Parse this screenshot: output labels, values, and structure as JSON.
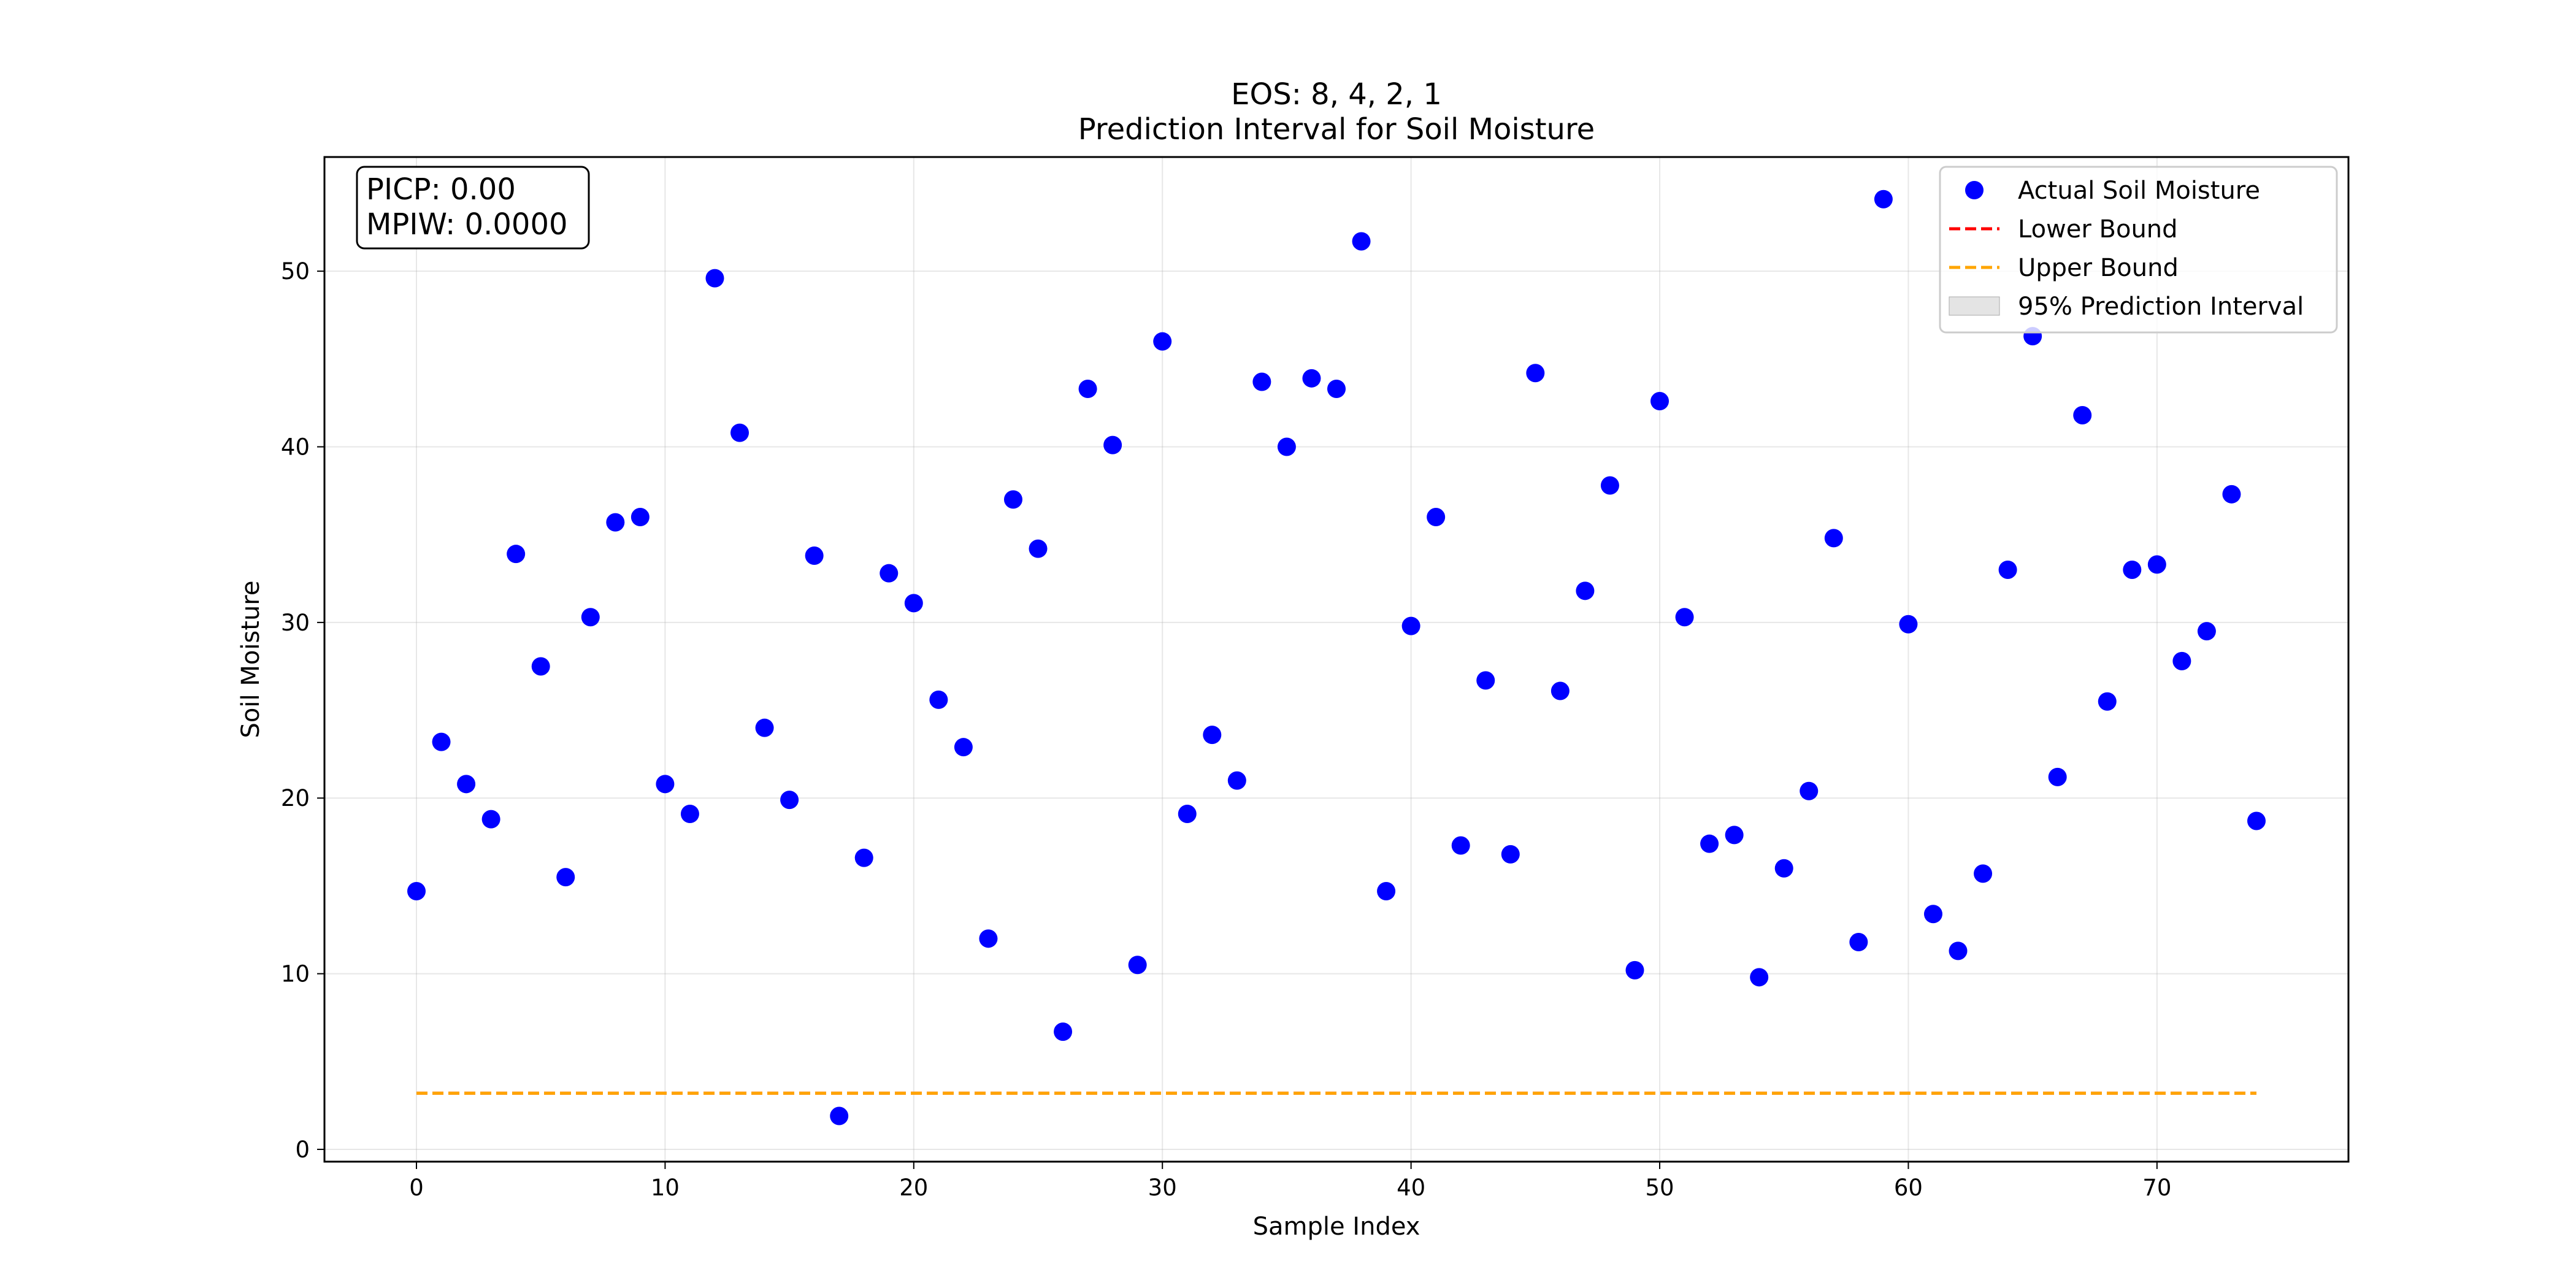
{
  "chart_data": {
    "type": "scatter",
    "title_line1": "EOS: 8, 4, 2, 1",
    "title_line2": "Prediction Interval for Soil Moisture",
    "xlabel": "Sample Index",
    "ylabel": "Soil Moisture",
    "xlim": [
      -3.7,
      77.7
    ],
    "ylim": [
      -0.7,
      56.5
    ],
    "xticks": [
      0,
      10,
      20,
      30,
      40,
      50,
      60,
      70
    ],
    "yticks": [
      0,
      10,
      20,
      30,
      40,
      50
    ],
    "grid": true,
    "legend_position": "top-right",
    "stats": {
      "picp": "PICP: 0.00",
      "mpiw": "MPIW: 0.0000"
    },
    "colors": {
      "actual": "#0000ff",
      "lower": "#ff0000",
      "upper": "#ffa500",
      "interval": "#d9d9d9"
    },
    "legend": [
      {
        "label": "Actual Soil Moisture",
        "kind": "marker",
        "color": "#0000ff"
      },
      {
        "label": "Lower Bound",
        "kind": "dashed",
        "color": "#ff0000"
      },
      {
        "label": "Upper Bound",
        "kind": "dashed",
        "color": "#ffa500"
      },
      {
        "label": "95% Prediction Interval",
        "kind": "patch",
        "color": "#d9d9d9"
      }
    ],
    "series": [
      {
        "name": "Actual Soil Moisture",
        "x": [
          0,
          1,
          2,
          3,
          4,
          5,
          6,
          7,
          8,
          9,
          10,
          11,
          12,
          13,
          14,
          15,
          16,
          17,
          18,
          19,
          20,
          21,
          22,
          23,
          24,
          25,
          26,
          27,
          28,
          29,
          30,
          31,
          32,
          33,
          34,
          35,
          36,
          37,
          38,
          39,
          40,
          41,
          42,
          43,
          44,
          45,
          46,
          47,
          48,
          49,
          50,
          51,
          52,
          53,
          54,
          55,
          56,
          57,
          58,
          59,
          60,
          61,
          62,
          63,
          64,
          65,
          66,
          67,
          68,
          69,
          70,
          71,
          72,
          73,
          74
        ],
        "y": [
          14.7,
          23.2,
          20.8,
          18.8,
          33.9,
          27.5,
          15.5,
          30.3,
          35.7,
          36.0,
          20.8,
          19.1,
          49.6,
          40.8,
          24.0,
          19.9,
          33.8,
          1.9,
          16.6,
          32.8,
          31.1,
          25.6,
          22.9,
          12.0,
          37.0,
          34.2,
          6.7,
          43.3,
          40.1,
          10.5,
          46.0,
          19.1,
          23.6,
          21.0,
          43.7,
          40.0,
          43.9,
          43.3,
          51.7,
          14.7,
          29.8,
          36.0,
          17.3,
          26.7,
          16.8,
          44.2,
          26.1,
          31.8,
          37.8,
          10.2,
          42.6,
          30.3,
          17.4,
          17.9,
          9.8,
          16.0,
          20.4,
          34.8,
          11.8,
          54.1,
          29.9,
          13.4,
          11.3,
          15.7,
          33.0,
          46.3,
          21.2,
          41.8,
          25.5,
          33.0,
          33.3,
          27.8,
          29.5,
          37.3,
          18.7
        ]
      },
      {
        "name": "Lower Bound",
        "x": [
          0,
          74
        ],
        "y": [
          3.2,
          3.2
        ]
      },
      {
        "name": "Upper Bound",
        "x": [
          0,
          74
        ],
        "y": [
          3.2,
          3.2
        ]
      }
    ]
  }
}
